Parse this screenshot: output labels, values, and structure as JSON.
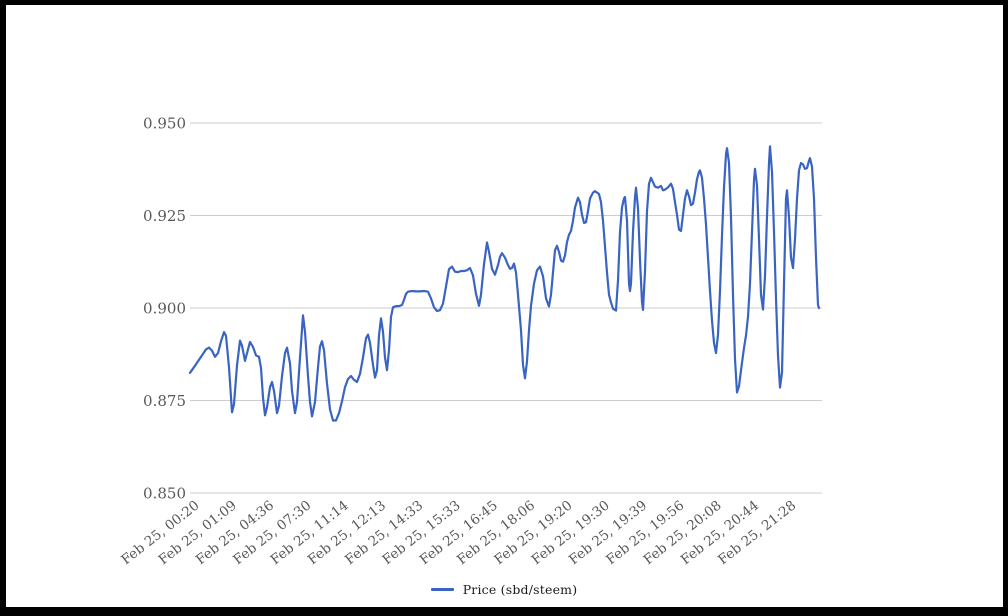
{
  "chart_data": {
    "type": "line",
    "title": "",
    "xlabel": "",
    "ylabel": "",
    "ylim": [
      0.85,
      0.95
    ],
    "grid": "horizontal",
    "legend_position": "bottom-center",
    "legend_label": "Price (sbd/steem)",
    "colors": {
      "line": "#3a64c1",
      "gridline": "#cccccc",
      "axis_text": "#58595b",
      "legend_text": "#1a1a1a",
      "background": "#ffffff",
      "frame": "#000000"
    },
    "y_ticks": [
      {
        "label": "0.950",
        "value": 0.95
      },
      {
        "label": "0.925",
        "value": 0.925
      },
      {
        "label": "0.900",
        "value": 0.9
      },
      {
        "label": "0.875",
        "value": 0.875
      },
      {
        "label": "0.850",
        "value": 0.85
      }
    ],
    "x_tick_labels": [
      "Feb 25, 00:20",
      "Feb 25, 01:09",
      "Feb 25, 04:36",
      "Feb 25, 07:30",
      "Feb 25, 11:14",
      "Feb 25, 12:13",
      "Feb 25, 14:33",
      "Feb 25, 15:33",
      "Feb 25, 16:45",
      "Feb 25, 18:06",
      "Feb 25, 19:20",
      "Feb 25, 19:30",
      "Feb 25, 19:39",
      "Feb 25, 19:56",
      "Feb 25, 20:08",
      "Feb 25, 20:44",
      "Feb 25, 21:28"
    ],
    "series": [
      {
        "name": "Price (sbd/steem)",
        "points": [
          [
            190,
            0.8825
          ],
          [
            194,
            0.884
          ],
          [
            198,
            0.8856
          ],
          [
            202,
            0.8872
          ],
          [
            206,
            0.8888
          ],
          [
            209,
            0.8893
          ],
          [
            212,
            0.8885
          ],
          [
            215,
            0.8868
          ],
          [
            218,
            0.8878
          ],
          [
            221,
            0.891
          ],
          [
            224,
            0.8935
          ],
          [
            226,
            0.8925
          ],
          [
            229,
            0.884
          ],
          [
            232,
            0.8718
          ],
          [
            234,
            0.874
          ],
          [
            237,
            0.8845
          ],
          [
            240,
            0.8912
          ],
          [
            242,
            0.8898
          ],
          [
            245,
            0.8857
          ],
          [
            248,
            0.8888
          ],
          [
            250,
            0.8908
          ],
          [
            253,
            0.8895
          ],
          [
            256,
            0.8872
          ],
          [
            259,
            0.8868
          ],
          [
            261,
            0.8838
          ],
          [
            263,
            0.8758
          ],
          [
            265,
            0.871
          ],
          [
            267,
            0.8732
          ],
          [
            270,
            0.8786
          ],
          [
            272,
            0.88
          ],
          [
            274,
            0.8776
          ],
          [
            277,
            0.8716
          ],
          [
            279,
            0.8736
          ],
          [
            282,
            0.8816
          ],
          [
            285,
            0.8878
          ],
          [
            287,
            0.8893
          ],
          [
            290,
            0.885
          ],
          [
            292,
            0.8776
          ],
          [
            295,
            0.8716
          ],
          [
            297,
            0.8746
          ],
          [
            300,
            0.8866
          ],
          [
            303,
            0.898
          ],
          [
            305,
            0.8936
          ],
          [
            308,
            0.8816
          ],
          [
            310,
            0.8746
          ],
          [
            312,
            0.8707
          ],
          [
            315,
            0.8746
          ],
          [
            318,
            0.884
          ],
          [
            320,
            0.8896
          ],
          [
            322,
            0.891
          ],
          [
            324,
            0.8886
          ],
          [
            327,
            0.8796
          ],
          [
            330,
            0.8726
          ],
          [
            333,
            0.8696
          ],
          [
            336,
            0.8696
          ],
          [
            339,
            0.8716
          ],
          [
            342,
            0.8748
          ],
          [
            345,
            0.8786
          ],
          [
            348,
            0.8808
          ],
          [
            351,
            0.8816
          ],
          [
            354,
            0.8806
          ],
          [
            357,
            0.88
          ],
          [
            360,
            0.8822
          ],
          [
            363,
            0.8866
          ],
          [
            366,
            0.8918
          ],
          [
            368,
            0.8928
          ],
          [
            370,
            0.8906
          ],
          [
            373,
            0.8846
          ],
          [
            375,
            0.8812
          ],
          [
            377,
            0.8832
          ],
          [
            379,
            0.8926
          ],
          [
            381,
            0.8972
          ],
          [
            383,
            0.8936
          ],
          [
            385,
            0.8866
          ],
          [
            387,
            0.8832
          ],
          [
            389,
            0.8886
          ],
          [
            391,
            0.8976
          ],
          [
            393,
            0.9002
          ],
          [
            396,
            0.9005
          ],
          [
            399,
            0.9005
          ],
          [
            402,
            0.9008
          ],
          [
            404,
            0.9022
          ],
          [
            406,
            0.9038
          ],
          [
            408,
            0.9044
          ],
          [
            412,
            0.9046
          ],
          [
            416,
            0.9045
          ],
          [
            420,
            0.9045
          ],
          [
            424,
            0.9046
          ],
          [
            428,
            0.9044
          ],
          [
            431,
            0.9026
          ],
          [
            434,
            0.9002
          ],
          [
            437,
            0.8992
          ],
          [
            440,
            0.8994
          ],
          [
            443,
            0.9012
          ],
          [
            446,
            0.9058
          ],
          [
            449,
            0.9105
          ],
          [
            452,
            0.9112
          ],
          [
            455,
            0.9098
          ],
          [
            458,
            0.9097
          ],
          [
            461,
            0.91
          ],
          [
            464,
            0.91
          ],
          [
            467,
            0.9102
          ],
          [
            470,
            0.9108
          ],
          [
            473,
            0.9088
          ],
          [
            476,
            0.9038
          ],
          [
            479,
            0.9006
          ],
          [
            481,
            0.9036
          ],
          [
            484,
            0.9118
          ],
          [
            487,
            0.9177
          ],
          [
            489,
            0.9152
          ],
          [
            492,
            0.9106
          ],
          [
            495,
            0.909
          ],
          [
            498,
            0.9116
          ],
          [
            500,
            0.9138
          ],
          [
            502,
            0.9148
          ],
          [
            505,
            0.9136
          ],
          [
            508,
            0.9116
          ],
          [
            510,
            0.9106
          ],
          [
            512,
            0.9108
          ],
          [
            514,
            0.912
          ],
          [
            516,
            0.9096
          ],
          [
            518,
            0.9036
          ],
          [
            521,
            0.894
          ],
          [
            523,
            0.8846
          ],
          [
            525,
            0.881
          ],
          [
            527,
            0.8856
          ],
          [
            529,
            0.894
          ],
          [
            531,
            0.9006
          ],
          [
            534,
            0.9066
          ],
          [
            537,
            0.9102
          ],
          [
            540,
            0.9112
          ],
          [
            543,
            0.9086
          ],
          [
            546,
            0.9026
          ],
          [
            549,
            0.9004
          ],
          [
            551,
            0.9036
          ],
          [
            553,
            0.9096
          ],
          [
            555,
            0.9156
          ],
          [
            557,
            0.9168
          ],
          [
            559,
            0.9152
          ],
          [
            561,
            0.9128
          ],
          [
            563,
            0.9125
          ],
          [
            565,
            0.9142
          ],
          [
            567,
            0.9178
          ],
          [
            569,
            0.9198
          ],
          [
            571,
            0.9208
          ],
          [
            573,
            0.9236
          ],
          [
            575,
            0.9272
          ],
          [
            578,
            0.9298
          ],
          [
            580,
            0.9286
          ],
          [
            582,
            0.9252
          ],
          [
            584,
            0.923
          ],
          [
            586,
            0.9232
          ],
          [
            588,
            0.9262
          ],
          [
            590,
            0.9296
          ],
          [
            593,
            0.9312
          ],
          [
            595,
            0.9316
          ],
          [
            597,
            0.9312
          ],
          [
            599,
            0.9308
          ],
          [
            601,
            0.9286
          ],
          [
            603,
            0.9236
          ],
          [
            605,
            0.9166
          ],
          [
            607,
            0.9096
          ],
          [
            609,
            0.9036
          ],
          [
            611,
            0.9015
          ],
          [
            613,
            0.8998
          ],
          [
            616,
            0.8993
          ],
          [
            618,
            0.9075
          ],
          [
            620,
            0.9205
          ],
          [
            622,
            0.9272
          ],
          [
            624,
            0.9296
          ],
          [
            625,
            0.93
          ],
          [
            627,
            0.9236
          ],
          [
            629,
            0.9066
          ],
          [
            630,
            0.9046
          ],
          [
            631,
            0.9066
          ],
          [
            633,
            0.9206
          ],
          [
            635,
            0.93
          ],
          [
            636,
            0.9325
          ],
          [
            638,
            0.927
          ],
          [
            640,
            0.913
          ],
          [
            642,
            0.9016
          ],
          [
            643,
            0.8995
          ],
          [
            645,
            0.91
          ],
          [
            647,
            0.9262
          ],
          [
            649,
            0.9336
          ],
          [
            651,
            0.9352
          ],
          [
            653,
            0.934
          ],
          [
            655,
            0.9328
          ],
          [
            658,
            0.9325
          ],
          [
            661,
            0.933
          ],
          [
            663,
            0.9318
          ],
          [
            665,
            0.932
          ],
          [
            668,
            0.9326
          ],
          [
            671,
            0.9336
          ],
          [
            673,
            0.9322
          ],
          [
            675,
            0.9286
          ],
          [
            677,
            0.9252
          ],
          [
            679,
            0.9212
          ],
          [
            681,
            0.9208
          ],
          [
            683,
            0.9252
          ],
          [
            685,
            0.9296
          ],
          [
            687,
            0.9318
          ],
          [
            689,
            0.9302
          ],
          [
            691,
            0.9278
          ],
          [
            693,
            0.9282
          ],
          [
            695,
            0.9312
          ],
          [
            697,
            0.9348
          ],
          [
            699,
            0.9368
          ],
          [
            700,
            0.9372
          ],
          [
            702,
            0.9352
          ],
          [
            704,
            0.9296
          ],
          [
            706,
            0.9226
          ],
          [
            708,
            0.9136
          ],
          [
            710,
            0.9046
          ],
          [
            712,
            0.8966
          ],
          [
            714,
            0.8906
          ],
          [
            716,
            0.8878
          ],
          [
            718,
            0.8928
          ],
          [
            720,
            0.9046
          ],
          [
            722,
            0.9196
          ],
          [
            724,
            0.9326
          ],
          [
            726,
            0.9416
          ],
          [
            727,
            0.9432
          ],
          [
            729,
            0.9392
          ],
          [
            731,
            0.9246
          ],
          [
            733,
            0.9036
          ],
          [
            735,
            0.8862
          ],
          [
            737,
            0.8772
          ],
          [
            739,
            0.8788
          ],
          [
            741,
            0.8832
          ],
          [
            744,
            0.8892
          ],
          [
            746,
            0.8926
          ],
          [
            748,
            0.8976
          ],
          [
            750,
            0.9066
          ],
          [
            752,
            0.9206
          ],
          [
            754,
            0.9346
          ],
          [
            755,
            0.9376
          ],
          [
            757,
            0.9332
          ],
          [
            759,
            0.9186
          ],
          [
            761,
            0.9036
          ],
          [
            763,
            0.8996
          ],
          [
            765,
            0.9086
          ],
          [
            767,
            0.9246
          ],
          [
            769,
            0.9392
          ],
          [
            770,
            0.9437
          ],
          [
            772,
            0.9368
          ],
          [
            774,
            0.9206
          ],
          [
            776,
            0.9026
          ],
          [
            778,
            0.8872
          ],
          [
            780,
            0.8785
          ],
          [
            782,
            0.8826
          ],
          [
            784,
            0.9066
          ],
          [
            786,
            0.9296
          ],
          [
            787,
            0.9318
          ],
          [
            789,
            0.9246
          ],
          [
            791,
            0.9136
          ],
          [
            793,
            0.9108
          ],
          [
            795,
            0.9186
          ],
          [
            797,
            0.9296
          ],
          [
            799,
            0.9372
          ],
          [
            801,
            0.9392
          ],
          [
            803,
            0.9388
          ],
          [
            805,
            0.9376
          ],
          [
            807,
            0.9378
          ],
          [
            809,
            0.9398
          ],
          [
            810,
            0.9405
          ],
          [
            812,
            0.9382
          ],
          [
            814,
            0.9296
          ],
          [
            816,
            0.9136
          ],
          [
            818,
            0.9008
          ],
          [
            819,
            0.9
          ]
        ]
      }
    ],
    "layout": {
      "plot_left": 190,
      "plot_right": 822,
      "plot_top": 123,
      "plot_bottom": 493,
      "x_tick_start": 200,
      "x_tick_step": 37.3,
      "x_label_rotation_deg": -38,
      "y_label_right_edge": 186
    }
  }
}
